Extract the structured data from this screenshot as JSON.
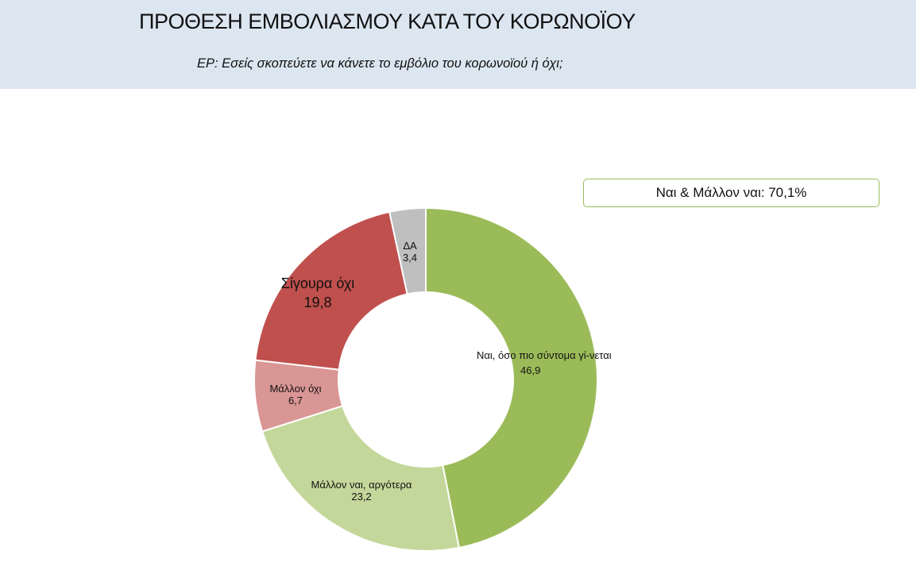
{
  "header": {
    "title": "ΠΡΟΘΕΣΗ ΕΜΒΟΛΙΑΣΜΟΥ ΚΑΤΑ ΤΟΥ ΚΟΡΩΝΟΪΟΥ",
    "subtitle": "ΕΡ: Εσείς σκοπεύετε να κάνετε το εμβόλιο του κορωνοϊού ή όχι;"
  },
  "summary_box": "Ναι & Μάλλον ναι: 70,1%",
  "chart_data": {
    "type": "pie",
    "variant": "donut",
    "title": "ΠΡΟΘΕΣΗ ΕΜΒΟΛΙΑΣΜΟΥ ΚΑΤΑ ΤΟΥ ΚΟΡΩΝΟΪΟΥ",
    "slices": [
      {
        "label": "Ναι, όσο πιο σύντομα γί-νεται",
        "value": 46.9,
        "value_label": "46,9",
        "color": "#9bbb59"
      },
      {
        "label": "Μάλλον ναι, αργότερα",
        "value": 23.2,
        "value_label": "23,2",
        "color": "#c4d79b"
      },
      {
        "label": "Μάλλον όχι",
        "value": 6.7,
        "value_label": "6,7",
        "color": "#d99694"
      },
      {
        "label": "Σίγουρα όχι",
        "value": 19.8,
        "value_label": "19,8",
        "color": "#c0504d"
      },
      {
        "label": "ΔΑ",
        "value": 3.4,
        "value_label": "3,4",
        "color": "#bfbfbf"
      }
    ]
  }
}
